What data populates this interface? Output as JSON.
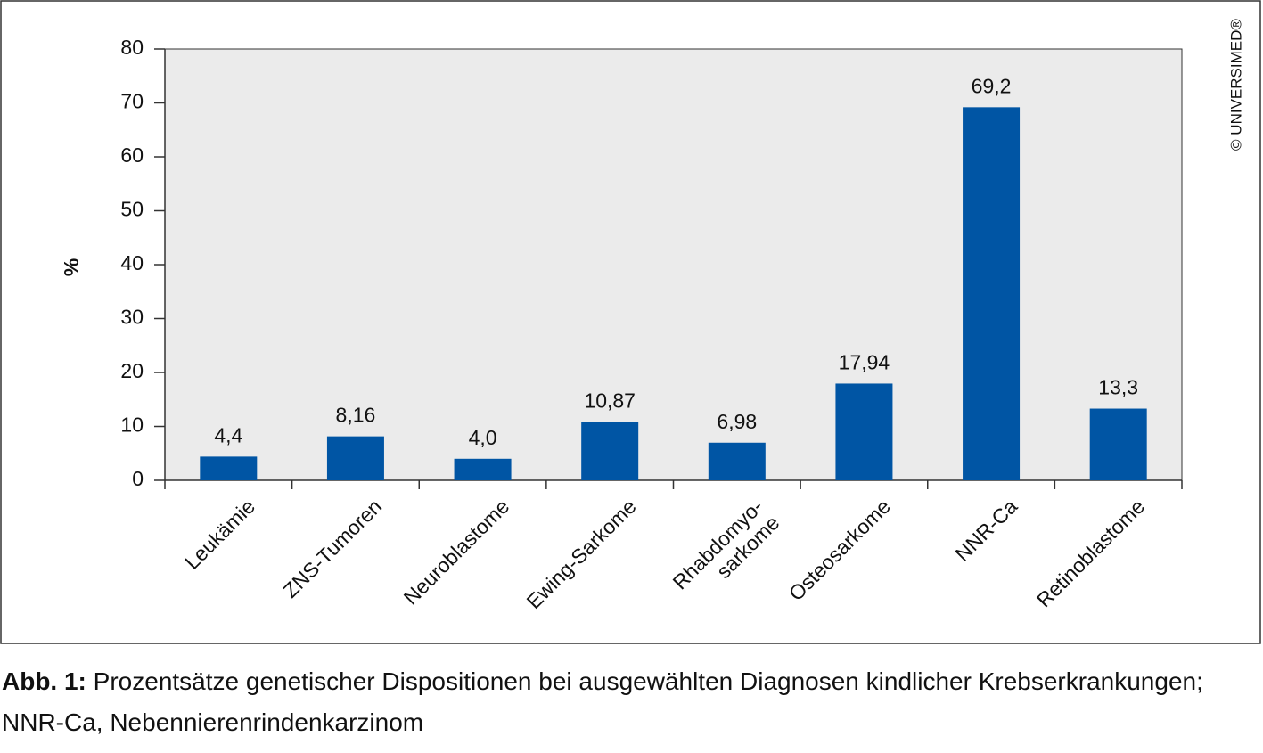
{
  "chart_data": {
    "type": "bar",
    "y_label": "%",
    "categories": [
      "Leukämie",
      "ZNS-Tumoren",
      "Neuroblastome",
      "Ewing-Sarkome",
      "Rhabdomyo-\nsarkome",
      "Osteosarkome",
      "NNR-Ca",
      "Retinoblastome"
    ],
    "values": [
      4.4,
      8.16,
      4.0,
      10.87,
      6.98,
      17.94,
      69.2,
      13.3
    ],
    "value_labels": [
      "4,4",
      "8,16",
      "4,0",
      "10,87",
      "6,98",
      "17,94",
      "69,2",
      "13,3"
    ],
    "color": "#0055a4",
    "ylim": [
      0,
      80
    ],
    "yticks": [
      0,
      10,
      20,
      30,
      40,
      50,
      60,
      70,
      80
    ],
    "copyright": "© UNIVERSIMED®"
  },
  "caption": {
    "label": "Abb. 1:",
    "text": "Prozentsätze genetischer Dispositionen bei ausgewählten Diagnosen kindlicher Krebserkrankungen; NNR-Ca, Nebennierenrindenkarzinom"
  }
}
